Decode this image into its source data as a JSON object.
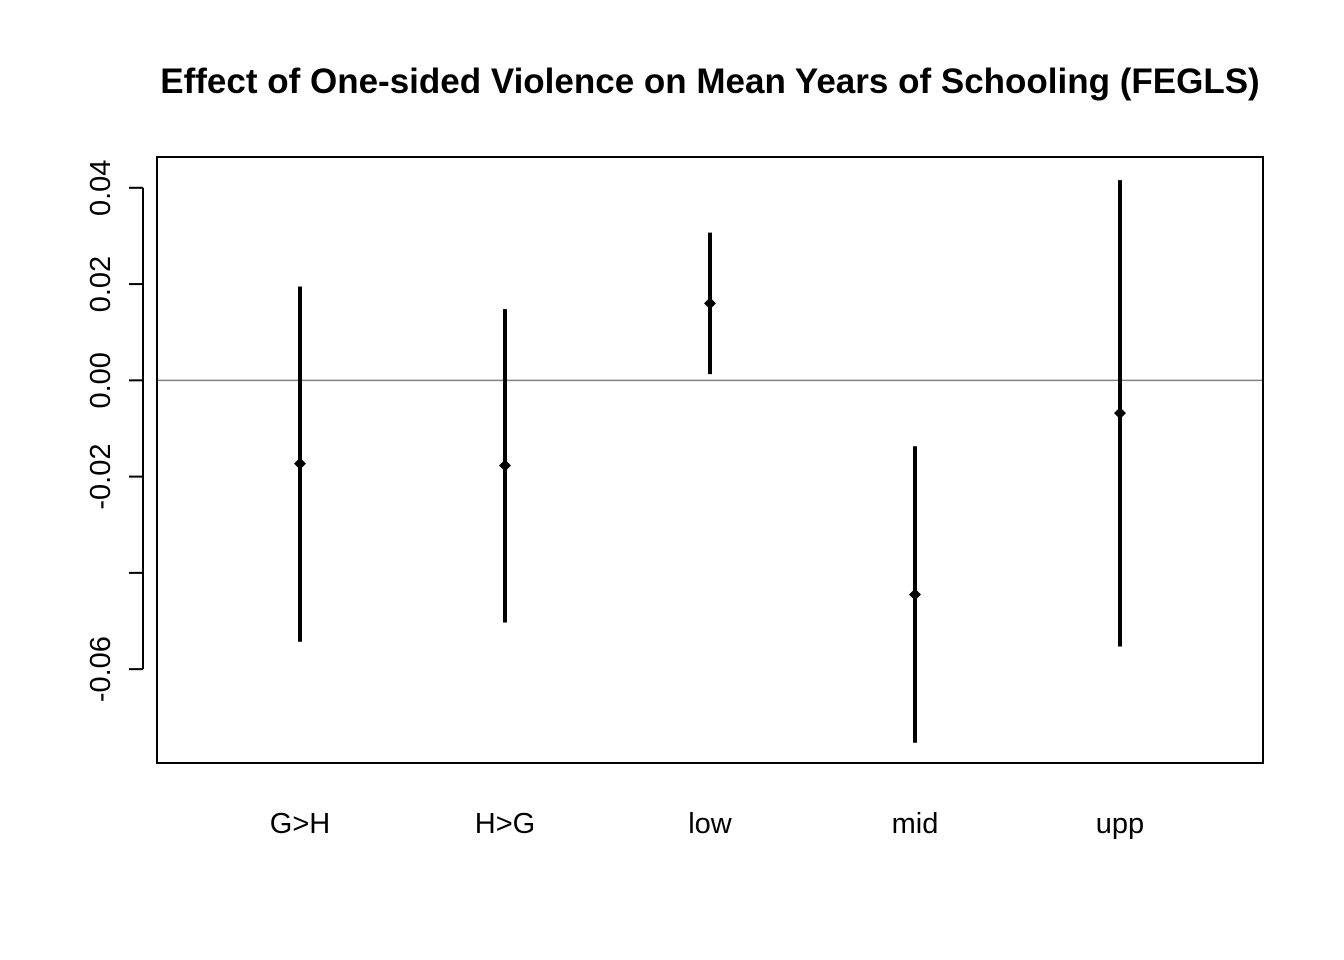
{
  "chart_data": {
    "type": "scatter",
    "title": "Effect of One-sided Violence on Mean Years of Schooling (FEGLS)",
    "xlabel": "",
    "ylabel": "",
    "categories": [
      "G>H",
      "H>G",
      "low",
      "mid",
      "upp"
    ],
    "series": [
      {
        "estimate": [
          -0.0173,
          -0.0177,
          0.016,
          -0.0445,
          -0.0068
        ],
        "lower": [
          -0.0543,
          -0.0503,
          0.0013,
          -0.0753,
          -0.0553
        ],
        "upper": [
          0.0195,
          0.0148,
          0.0307,
          -0.0137,
          0.0416
        ]
      }
    ],
    "y_ticks": [
      -0.06,
      -0.04,
      -0.02,
      0.0,
      0.02,
      0.04
    ],
    "y_tick_labels": [
      "-0.06",
      "",
      "-0.02",
      "0.00",
      "0.02",
      "0.04"
    ],
    "ylim": [
      -0.0795,
      0.0464
    ],
    "reference_line": 0,
    "grid": false,
    "legend": "none",
    "colors": {
      "marks": "#000000",
      "reference_line": "#808080",
      "frame": "#000000"
    }
  }
}
